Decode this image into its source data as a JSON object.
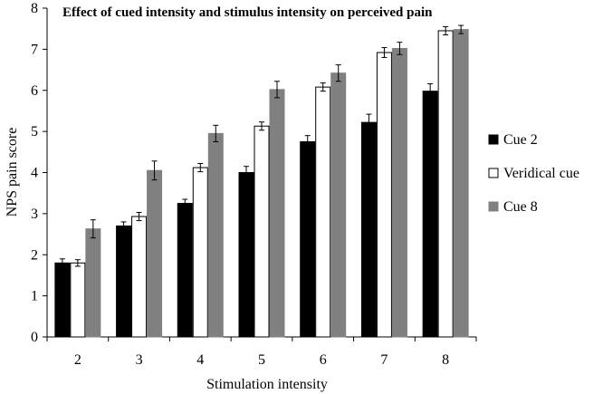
{
  "chart_data": {
    "type": "bar",
    "title": "Effect of cued intensity and stimulus intensity on perceived pain",
    "xlabel": "Stimulation intensity",
    "ylabel": "NPS pain score",
    "ylim": [
      0,
      8
    ],
    "yticks": [
      "0",
      "1",
      "2",
      "3",
      "4",
      "5",
      "6",
      "7",
      "8"
    ],
    "categories": [
      "2",
      "3",
      "4",
      "5",
      "6",
      "7",
      "8"
    ],
    "grid": false,
    "legend_position": "right",
    "series": [
      {
        "name": "Cue 2",
        "color": "#000000",
        "stroke": "#000000",
        "values": [
          1.8,
          2.7,
          3.25,
          4.0,
          4.75,
          5.22,
          5.98
        ],
        "errors": [
          0.1,
          0.1,
          0.1,
          0.15,
          0.15,
          0.2,
          0.18
        ]
      },
      {
        "name": "Veridical cue",
        "color": "#ffffff",
        "stroke": "#000000",
        "values": [
          1.8,
          2.93,
          4.12,
          5.13,
          6.08,
          6.92,
          7.45
        ],
        "errors": [
          0.08,
          0.1,
          0.1,
          0.1,
          0.1,
          0.12,
          0.1
        ]
      },
      {
        "name": "Cue 8",
        "color": "#808080",
        "stroke": "#808080",
        "values": [
          2.63,
          4.05,
          4.95,
          6.02,
          6.42,
          7.02,
          7.48
        ],
        "errors": [
          0.22,
          0.23,
          0.2,
          0.2,
          0.2,
          0.15,
          0.1
        ]
      }
    ]
  }
}
